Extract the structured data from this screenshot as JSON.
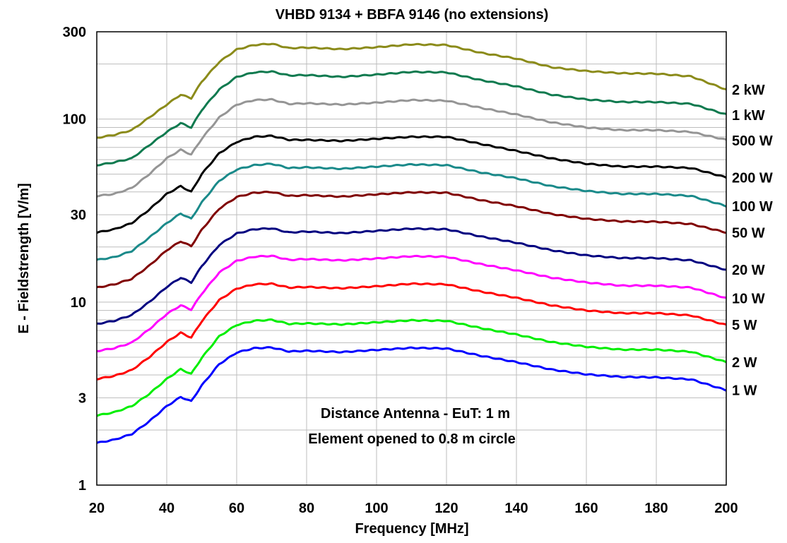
{
  "chart_data": {
    "type": "line",
    "title": "VHBD 9134 + BBFA 9146 (no extensions)",
    "xlabel": "Frequency [MHz]",
    "ylabel": "E - Fieldstrength [V/m]",
    "xlim": [
      20,
      200
    ],
    "ylim": [
      1,
      300
    ],
    "yscale": "log",
    "grid": true,
    "x_ticks": [
      "20",
      "40",
      "60",
      "80",
      "100",
      "120",
      "140",
      "160",
      "180",
      "200"
    ],
    "y_ticks": [
      "1",
      "3",
      "10",
      "30",
      "100",
      "300"
    ],
    "annotations": [
      "Distance Antenna - EuT: 1 m",
      "Element opened to 0.8 m circle"
    ],
    "x": [
      20,
      25,
      30,
      35,
      40,
      44,
      47,
      50,
      55,
      60,
      65,
      70,
      75,
      80,
      90,
      100,
      110,
      120,
      130,
      140,
      150,
      160,
      170,
      180,
      190,
      200
    ],
    "series": [
      {
        "name": "2 kW",
        "color": "#8b8b1a",
        "values": [
          79,
          82,
          87,
          102,
          120,
          136,
          130,
          160,
          205,
          240,
          254,
          258,
          244,
          246,
          241,
          247,
          256,
          254,
          230,
          214,
          192,
          183,
          178,
          177,
          171,
          145
        ]
      },
      {
        "name": "1 kW",
        "color": "#0f7a4f",
        "values": [
          56,
          58,
          61,
          72,
          85,
          95,
          90,
          112,
          145,
          170,
          180,
          182,
          173,
          174,
          170,
          175,
          181,
          180,
          163,
          151,
          136,
          128,
          124,
          124,
          121,
          106
        ]
      },
      {
        "name": "500 W",
        "color": "#959595",
        "values": [
          38,
          39,
          42,
          50,
          61,
          68,
          64,
          78,
          102,
          120,
          127,
          128,
          121,
          122,
          120,
          123,
          127,
          126,
          115,
          106,
          96,
          90,
          87,
          87,
          85,
          77
        ]
      },
      {
        "name": "200 W",
        "color": "#000000",
        "values": [
          24,
          25,
          27,
          32,
          39,
          43,
          40,
          50,
          65,
          75,
          80,
          81,
          77,
          77,
          76,
          78,
          80,
          80,
          73,
          67,
          61,
          57,
          55,
          55,
          54,
          48
        ]
      },
      {
        "name": "100 W",
        "color": "#1a8a8a",
        "values": [
          17,
          17.6,
          19,
          22.5,
          27,
          30.5,
          28.5,
          35,
          46,
          53,
          56,
          57,
          54,
          54.5,
          53.5,
          55,
          56.5,
          56,
          51,
          47.5,
          43,
          40.5,
          39,
          39,
          38,
          33.5
        ]
      },
      {
        "name": "50 W",
        "color": "#800000",
        "values": [
          12,
          12.5,
          13.4,
          15.8,
          19.2,
          21.5,
          20.2,
          24.8,
          32.4,
          37.5,
          39.6,
          40,
          38,
          38.4,
          37.7,
          38.8,
          39.8,
          39.6,
          36,
          33.4,
          30.3,
          28.5,
          27.6,
          27.5,
          26.7,
          24
        ]
      },
      {
        "name": "20 W",
        "color": "#000080",
        "values": [
          7.6,
          7.9,
          8.5,
          10,
          12.1,
          13.6,
          12.8,
          15.7,
          20.5,
          23.7,
          25,
          25.3,
          24,
          24.3,
          23.8,
          24.5,
          25.2,
          25,
          22.8,
          21.1,
          19.2,
          18,
          17.4,
          17.4,
          16.9,
          15
        ]
      },
      {
        "name": "10 W",
        "color": "#ff00ff",
        "values": [
          5.4,
          5.6,
          6,
          7.1,
          8.6,
          9.6,
          9.1,
          11.1,
          14.5,
          16.8,
          17.7,
          17.9,
          17,
          17.2,
          16.9,
          17.3,
          17.8,
          17.7,
          16.1,
          14.9,
          13.6,
          12.8,
          12.3,
          12.3,
          12,
          10.5
        ]
      },
      {
        "name": "5 W",
        "color": "#ff0000",
        "values": [
          3.8,
          3.95,
          4.25,
          5,
          6.05,
          6.8,
          6.4,
          7.85,
          10.25,
          11.85,
          12.5,
          12.6,
          12,
          12.1,
          11.9,
          12.2,
          12.6,
          12.5,
          11.4,
          10.55,
          9.6,
          9,
          8.7,
          8.7,
          8.45,
          7.5
        ]
      },
      {
        "name": "2 W",
        "color": "#00ee00",
        "values": [
          2.4,
          2.5,
          2.7,
          3.15,
          3.8,
          4.3,
          4.05,
          4.95,
          6.5,
          7.5,
          7.9,
          8,
          7.6,
          7.65,
          7.55,
          7.75,
          7.95,
          7.9,
          7.2,
          6.65,
          6.05,
          5.7,
          5.5,
          5.5,
          5.35,
          4.7
        ]
      },
      {
        "name": "1 W",
        "color": "#0000ff",
        "values": [
          1.7,
          1.77,
          1.9,
          2.23,
          2.7,
          3.03,
          2.87,
          3.5,
          4.58,
          5.3,
          5.6,
          5.65,
          5.37,
          5.42,
          5.33,
          5.48,
          5.62,
          5.58,
          5.08,
          4.7,
          4.28,
          4.03,
          3.9,
          3.88,
          3.78,
          3.3
        ]
      }
    ]
  }
}
